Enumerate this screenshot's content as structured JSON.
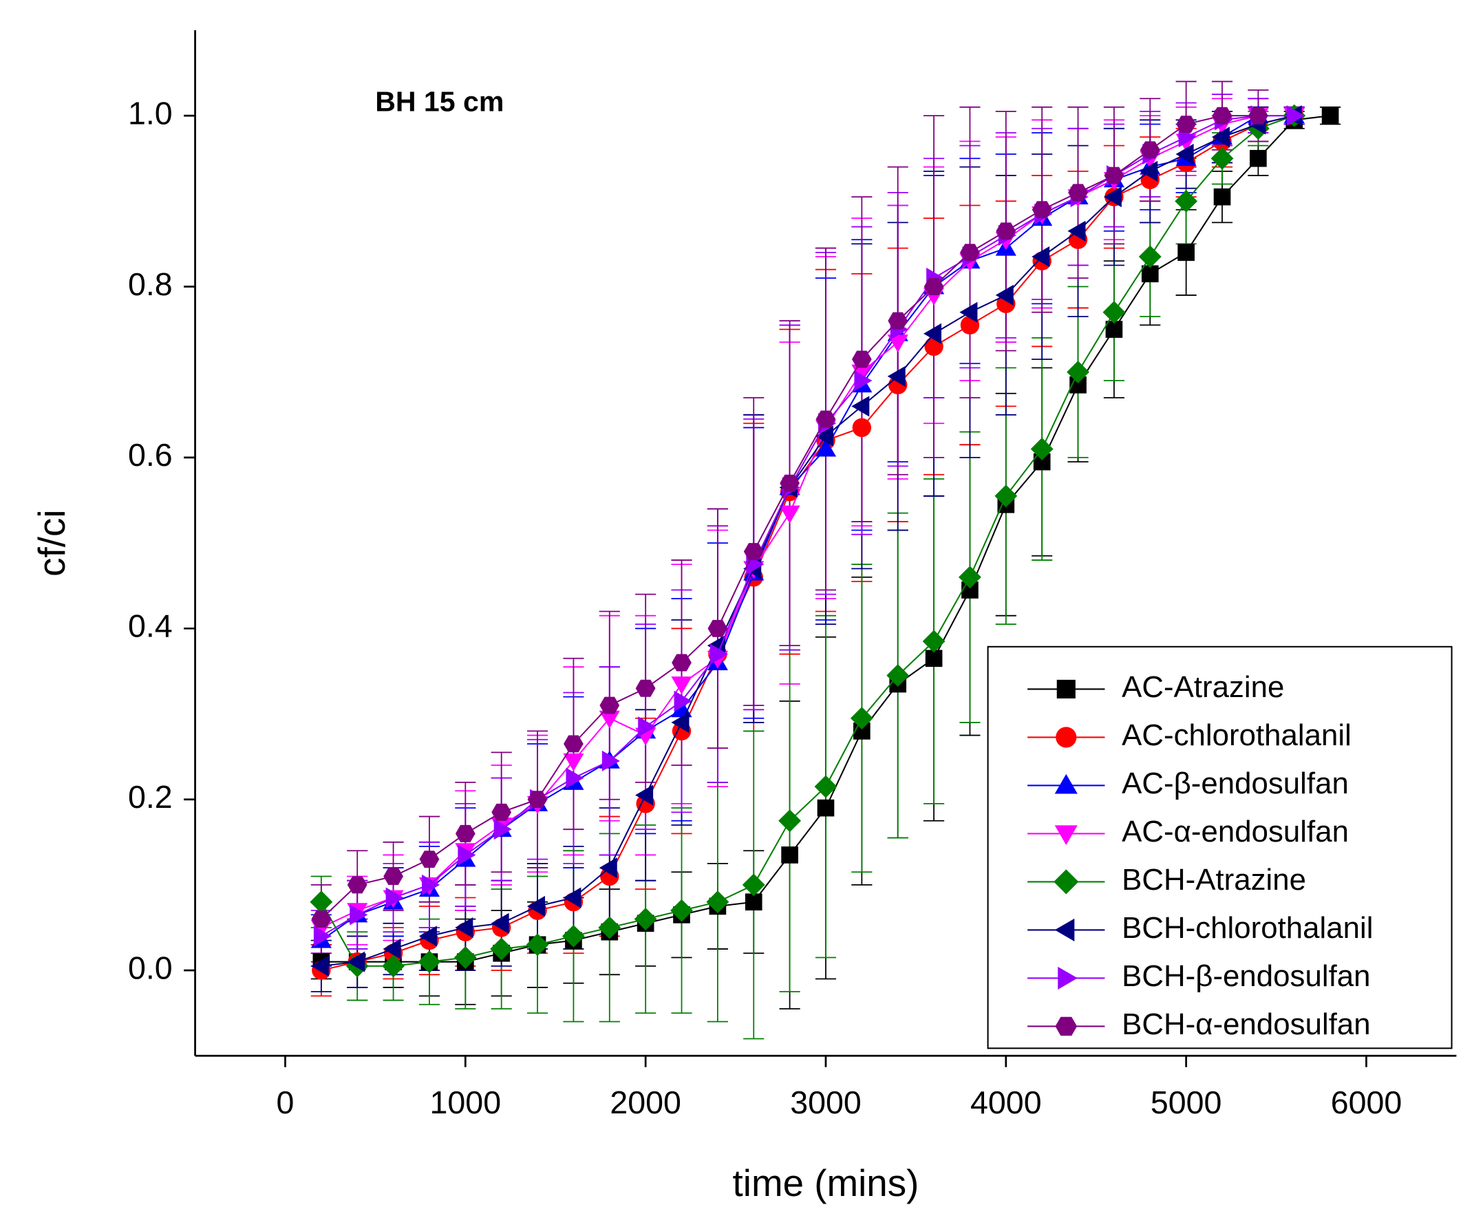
{
  "chart_data": {
    "type": "line",
    "annotation": "BH 15 cm",
    "x_label": "time (mins)",
    "y_label": "cf/ci",
    "xlim": [
      -500,
      6500
    ],
    "ylim": [
      -0.1,
      1.1
    ],
    "xticks": [
      0,
      1000,
      2000,
      3000,
      4000,
      5000,
      6000
    ],
    "yticks": [
      {
        "value": 0,
        "label": "0.0"
      },
      0.2,
      0.4,
      0.6,
      0.8,
      {
        "value": 1,
        "label": "1.0"
      }
    ],
    "x": [
      200,
      400,
      600,
      800,
      1000,
      1200,
      1400,
      1600,
      1800,
      2000,
      2200,
      2400,
      2600,
      2800,
      3000,
      3200,
      3400,
      3600,
      3800,
      4000,
      4200,
      4400,
      4600,
      4800,
      5000,
      5200,
      5400,
      5600,
      5800
    ],
    "series": [
      {
        "name": "AC-Atrazine",
        "color": "#000000",
        "marker": "square",
        "values": [
          0.01,
          0.01,
          0.01,
          0.01,
          0.01,
          0.02,
          0.03,
          0.035,
          0.045,
          0.055,
          0.065,
          0.075,
          0.08,
          0.135,
          0.19,
          0.28,
          0.335,
          0.365,
          0.445,
          0.545,
          0.595,
          0.685,
          0.75,
          0.815,
          0.84,
          0.905,
          0.95,
          0.995,
          1.0
        ],
        "errors": [
          0.02,
          0.03,
          0.03,
          0.04,
          0.05,
          0.05,
          0.05,
          0.05,
          0.05,
          0.05,
          0.05,
          0.05,
          0.06,
          0.18,
          0.2,
          0.18,
          0.18,
          0.19,
          0.17,
          0.13,
          0.11,
          0.09,
          0.08,
          0.06,
          0.05,
          0.03,
          0.02,
          0.01,
          0.01
        ]
      },
      {
        "name": "AC-chlorothalanil",
        "color": "#ff0000",
        "marker": "circle",
        "values": [
          0.0,
          0.01,
          0.02,
          0.035,
          0.045,
          0.05,
          0.07,
          0.08,
          0.11,
          0.195,
          0.28,
          0.37,
          0.46,
          0.56,
          0.62,
          0.635,
          0.685,
          0.73,
          0.755,
          0.78,
          0.83,
          0.855,
          0.905,
          0.925,
          0.945,
          0.97,
          0.99,
          1.0,
          null
        ],
        "errors": [
          0.03,
          0.03,
          0.03,
          0.04,
          0.04,
          0.05,
          0.05,
          0.06,
          0.07,
          0.1,
          0.12,
          0.15,
          0.18,
          0.19,
          0.2,
          0.18,
          0.16,
          0.15,
          0.14,
          0.12,
          0.1,
          0.08,
          0.06,
          0.05,
          0.04,
          0.03,
          0.02,
          0.01,
          null
        ]
      },
      {
        "name": "AC-β-endosulfan",
        "color": "#0000ff",
        "marker": "triangle-up",
        "values": [
          0.035,
          0.065,
          0.08,
          0.095,
          0.13,
          0.165,
          0.195,
          0.22,
          0.245,
          0.28,
          0.305,
          0.36,
          0.465,
          0.565,
          0.61,
          0.685,
          0.745,
          0.8,
          0.83,
          0.845,
          0.88,
          0.905,
          0.925,
          0.94,
          0.95,
          0.975,
          1.0,
          1.0,
          null
        ],
        "errors": [
          0.03,
          0.04,
          0.04,
          0.05,
          0.06,
          0.06,
          0.07,
          0.1,
          0.11,
          0.12,
          0.13,
          0.14,
          0.17,
          0.19,
          0.2,
          0.17,
          0.15,
          0.13,
          0.12,
          0.11,
          0.1,
          0.08,
          0.06,
          0.05,
          0.04,
          0.03,
          0.02,
          0.01,
          null
        ]
      },
      {
        "name": "AC-α-endosulfan",
        "color": "#ff00ff",
        "marker": "triangle-down",
        "values": [
          0.05,
          0.07,
          0.085,
          0.1,
          0.14,
          0.17,
          0.195,
          0.245,
          0.295,
          0.275,
          0.335,
          0.365,
          0.47,
          0.535,
          0.635,
          0.7,
          0.735,
          0.79,
          0.83,
          0.855,
          0.885,
          0.905,
          0.925,
          0.95,
          0.97,
          0.99,
          1.0,
          1.0,
          null
        ],
        "errors": [
          0.03,
          0.04,
          0.05,
          0.05,
          0.07,
          0.07,
          0.08,
          0.11,
          0.12,
          0.14,
          0.14,
          0.15,
          0.18,
          0.2,
          0.2,
          0.18,
          0.16,
          0.15,
          0.14,
          0.12,
          0.11,
          0.08,
          0.07,
          0.05,
          0.04,
          0.03,
          0.02,
          0.01,
          null
        ]
      },
      {
        "name": "BCH-Atrazine",
        "color": "#008000",
        "marker": "diamond",
        "values": [
          0.08,
          0.005,
          0.005,
          0.01,
          0.015,
          0.025,
          0.03,
          0.04,
          0.05,
          0.06,
          0.07,
          0.08,
          0.1,
          0.175,
          0.215,
          0.295,
          0.345,
          0.385,
          0.46,
          0.555,
          0.61,
          0.7,
          0.77,
          0.835,
          0.9,
          0.95,
          0.985,
          1.0,
          null
        ],
        "errors": [
          0.03,
          0.04,
          0.04,
          0.05,
          0.06,
          0.07,
          0.08,
          0.1,
          0.11,
          0.11,
          0.12,
          0.14,
          0.18,
          0.2,
          0.2,
          0.18,
          0.19,
          0.19,
          0.17,
          0.15,
          0.13,
          0.1,
          0.08,
          0.07,
          0.05,
          0.03,
          0.02,
          0.01,
          null
        ]
      },
      {
        "name": "BCH-chlorothalanil",
        "color": "#000080",
        "marker": "triangle-left",
        "values": [
          0.005,
          0.01,
          0.025,
          0.04,
          0.05,
          0.055,
          0.075,
          0.085,
          0.12,
          0.205,
          0.29,
          0.38,
          0.47,
          0.565,
          0.625,
          0.66,
          0.695,
          0.745,
          0.77,
          0.79,
          0.835,
          0.865,
          0.905,
          0.935,
          0.955,
          0.975,
          0.99,
          1.0,
          null
        ],
        "errors": [
          0.03,
          0.03,
          0.03,
          0.04,
          0.05,
          0.05,
          0.05,
          0.06,
          0.07,
          0.1,
          0.12,
          0.16,
          0.18,
          0.19,
          0.22,
          0.19,
          0.18,
          0.19,
          0.17,
          0.14,
          0.12,
          0.1,
          0.08,
          0.06,
          0.04,
          0.03,
          0.02,
          0.01,
          null
        ]
      },
      {
        "name": "BCH-β-endosulfan",
        "color": "#9900ff",
        "marker": "triangle-right",
        "values": [
          0.04,
          0.065,
          0.085,
          0.1,
          0.135,
          0.165,
          0.2,
          0.225,
          0.245,
          0.285,
          0.315,
          0.37,
          0.475,
          0.565,
          0.64,
          0.69,
          0.75,
          0.81,
          0.835,
          0.86,
          0.885,
          0.905,
          0.93,
          0.955,
          0.975,
          0.995,
          1.0,
          1.0,
          null
        ],
        "errors": [
          0.03,
          0.04,
          0.04,
          0.05,
          0.06,
          0.06,
          0.07,
          0.1,
          0.11,
          0.12,
          0.13,
          0.15,
          0.17,
          0.19,
          0.2,
          0.18,
          0.16,
          0.14,
          0.13,
          0.12,
          0.1,
          0.08,
          0.06,
          0.05,
          0.04,
          0.03,
          0.02,
          0.01,
          null
        ]
      },
      {
        "name": "BCH-α-endosulfan",
        "color": "#800080",
        "marker": "hexagon",
        "values": [
          0.06,
          0.1,
          0.11,
          0.13,
          0.16,
          0.185,
          0.2,
          0.265,
          0.31,
          0.33,
          0.36,
          0.4,
          0.49,
          0.57,
          0.645,
          0.715,
          0.76,
          0.8,
          0.84,
          0.865,
          0.89,
          0.91,
          0.93,
          0.96,
          0.99,
          1.0,
          1.0,
          null,
          null
        ],
        "errors": [
          0.04,
          0.04,
          0.04,
          0.05,
          0.06,
          0.07,
          0.08,
          0.1,
          0.11,
          0.11,
          0.12,
          0.14,
          0.18,
          0.19,
          0.2,
          0.19,
          0.18,
          0.2,
          0.17,
          0.14,
          0.12,
          0.1,
          0.08,
          0.06,
          0.05,
          0.04,
          0.03,
          null,
          null
        ]
      }
    ]
  }
}
